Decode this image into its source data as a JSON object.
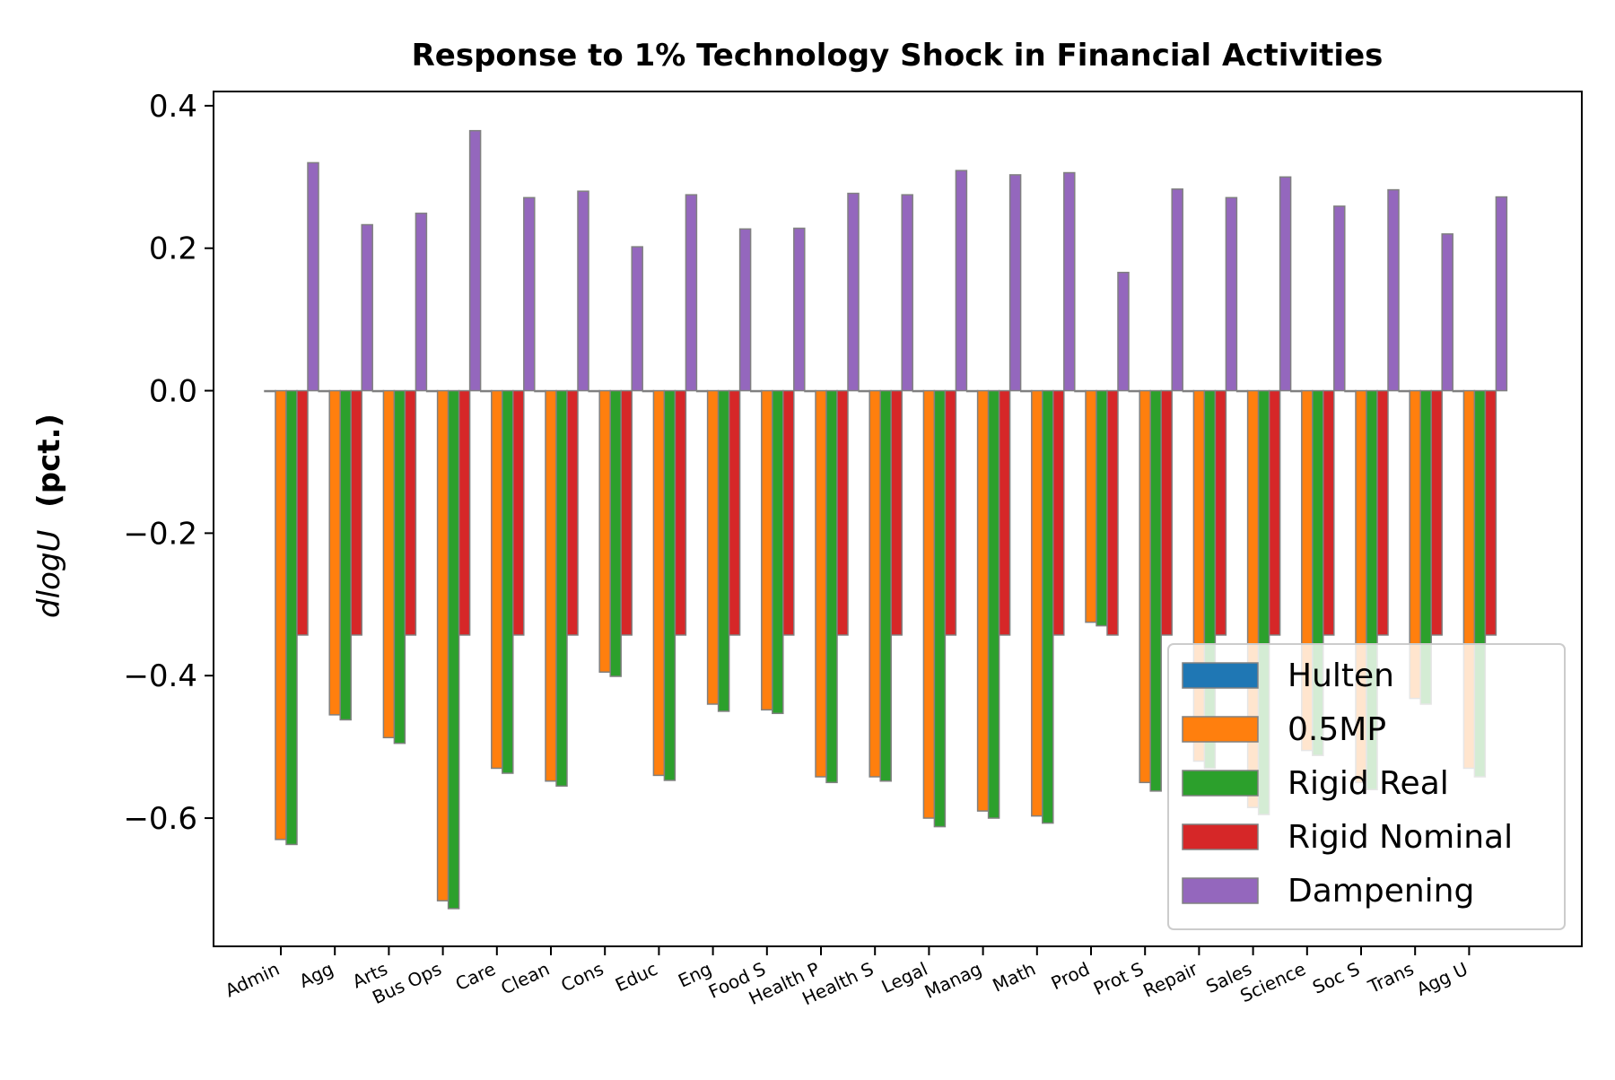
{
  "chart_data": {
    "type": "bar",
    "title": "Response to 1% Technology Shock in Financial Activities",
    "xlabel": "",
    "ylabel_math": "dlogU",
    "ylabel_bold": "(pct.)",
    "ylim": [
      -0.78,
      0.42
    ],
    "yticks": [
      0.4,
      0.2,
      0.0,
      -0.2,
      -0.4,
      -0.6
    ],
    "ytick_labels": [
      "0.4",
      "0.2",
      "0.0",
      "−0.2",
      "−0.4",
      "−0.6"
    ],
    "categories": [
      "Admin",
      "Agg",
      "Arts",
      "Bus Ops",
      "Care",
      "Clean",
      "Cons",
      "Educ",
      "Eng",
      "Food S",
      "Health P",
      "Health S",
      "Legal",
      "Manag",
      "Math",
      "Prod",
      "Prot S",
      "Repair",
      "Sales",
      "Science",
      "Soc S",
      "Trans",
      "Agg U"
    ],
    "legend_position": "lower right",
    "grid": false,
    "series": [
      {
        "name": "Hulten",
        "color": "#1f77b4",
        "values": [
          0,
          0,
          0,
          0,
          0,
          0,
          0,
          0,
          0,
          0,
          0,
          0,
          0,
          0,
          0,
          0,
          0,
          0,
          0,
          0,
          0,
          0,
          0
        ]
      },
      {
        "name": "0.5MP",
        "color": "#ff7f0e",
        "values": [
          -0.63,
          -0.455,
          -0.487,
          -0.716,
          -0.53,
          -0.548,
          -0.395,
          -0.54,
          -0.44,
          -0.448,
          -0.542,
          -0.542,
          -0.6,
          -0.59,
          -0.597,
          -0.325,
          -0.55,
          -0.52,
          -0.585,
          -0.505,
          -0.55,
          -0.432,
          -0.53
        ]
      },
      {
        "name": "Rigid Real",
        "color": "#2ca02c",
        "values": [
          -0.637,
          -0.462,
          -0.495,
          -0.727,
          -0.537,
          -0.555,
          -0.401,
          -0.547,
          -0.45,
          -0.453,
          -0.55,
          -0.548,
          -0.612,
          -0.6,
          -0.607,
          -0.33,
          -0.562,
          -0.53,
          -0.595,
          -0.512,
          -0.56,
          -0.44,
          -0.542
        ]
      },
      {
        "name": "Rigid Nominal",
        "color": "#d62728",
        "values": [
          -0.343,
          -0.343,
          -0.343,
          -0.343,
          -0.343,
          -0.343,
          -0.343,
          -0.343,
          -0.343,
          -0.343,
          -0.343,
          -0.343,
          -0.343,
          -0.343,
          -0.343,
          -0.343,
          -0.343,
          -0.343,
          -0.343,
          -0.343,
          -0.343,
          -0.343,
          -0.343
        ]
      },
      {
        "name": "Dampening",
        "color": "#9467bd",
        "values": [
          0.32,
          0.233,
          0.249,
          0.365,
          0.271,
          0.28,
          0.202,
          0.275,
          0.227,
          0.228,
          0.277,
          0.275,
          0.309,
          0.303,
          0.306,
          0.166,
          0.283,
          0.271,
          0.3,
          0.259,
          0.282,
          0.22,
          0.272
        ]
      }
    ]
  }
}
